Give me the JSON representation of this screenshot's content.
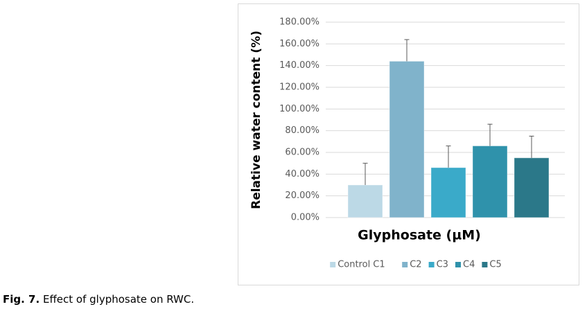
{
  "chart_data": {
    "type": "bar",
    "x_label": "Glyphosate (µM)",
    "y_label": "Relative water content (%)",
    "categories": [
      "Control C1",
      "C2",
      "C3",
      "C4",
      "C5"
    ],
    "values": [
      30,
      144,
      46,
      66,
      55
    ],
    "errors": [
      20,
      20,
      20,
      20,
      20
    ],
    "colors": [
      "#bcd9e6",
      "#80b3cb",
      "#3aaac9",
      "#2f92ab",
      "#2b7889"
    ],
    "ylim": [
      0,
      180
    ],
    "yticks": [
      {
        "value": 0,
        "label": "0.00%"
      },
      {
        "value": 20,
        "label": "20.00%"
      },
      {
        "value": 40,
        "label": "40.00%"
      },
      {
        "value": 60,
        "label": "60.00%"
      },
      {
        "value": 80,
        "label": "80.00%"
      },
      {
        "value": 100,
        "label": "100.00%"
      },
      {
        "value": 120,
        "label": "120.00%"
      },
      {
        "value": 140,
        "label": "140.00%"
      },
      {
        "value": 160,
        "label": "160.00%"
      },
      {
        "value": 180,
        "label": "180.00%"
      }
    ],
    "grid": true,
    "legend": "bottom"
  },
  "caption": {
    "label": "Fig. 7.",
    "text": "Effect of glyphosate on RWC."
  }
}
